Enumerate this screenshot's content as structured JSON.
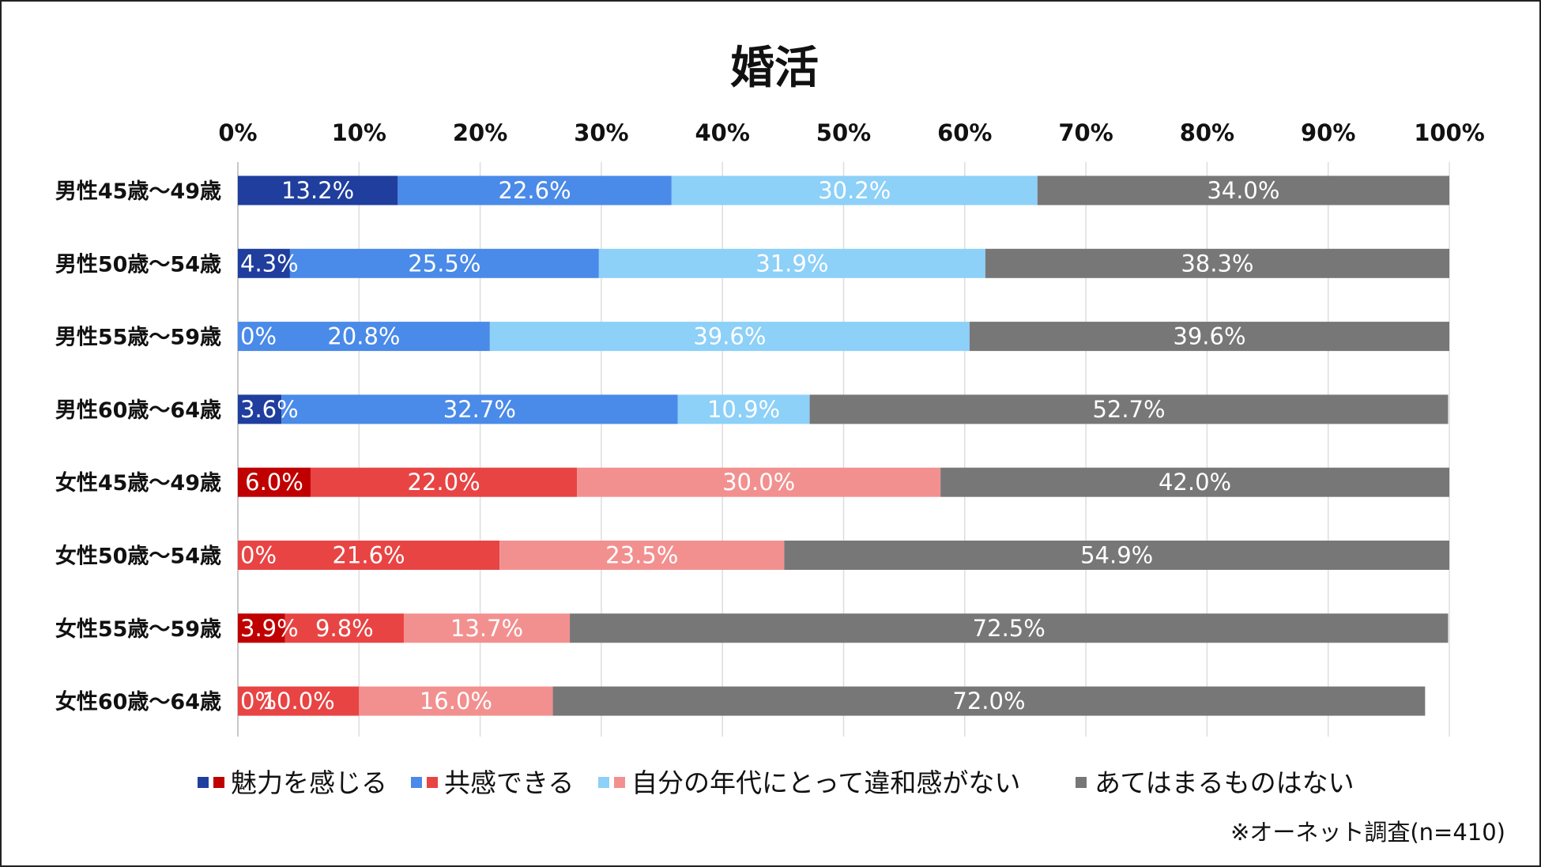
{
  "chart_data": {
    "type": "bar",
    "orientation": "horizontal",
    "stacked": true,
    "title": "婚活",
    "x_ticks": [
      "0%",
      "10%",
      "20%",
      "30%",
      "40%",
      "50%",
      "60%",
      "70%",
      "80%",
      "90%",
      "100%"
    ],
    "xlim": [
      0,
      100
    ],
    "grid": true,
    "legend_position": "bottom",
    "categories": [
      "男性45歳〜49歳",
      "男性50歳〜54歳",
      "男性55歳〜59歳",
      "男性60歳〜64歳",
      "女性45歳〜49歳",
      "女性50歳〜54歳",
      "女性55歳〜59歳",
      "女性60歳〜64歳"
    ],
    "series": [
      {
        "name": "魅力を感じる",
        "values": [
          13.2,
          4.3,
          0,
          3.6,
          6.0,
          0,
          3.9,
          0
        ],
        "labels": [
          "13.2%",
          "4.3%",
          "0%",
          "3.6%",
          "6.0%",
          "0%",
          "3.9%",
          "0%"
        ],
        "color_male": "#1f3e9e",
        "color_female": "#c00000"
      },
      {
        "name": "共感できる",
        "values": [
          22.6,
          25.5,
          20.8,
          32.7,
          22.0,
          21.6,
          9.8,
          10.0
        ],
        "labels": [
          "22.6%",
          "25.5%",
          "20.8%",
          "32.7%",
          "22.0%",
          "21.6%",
          "9.8%",
          "10.0%"
        ],
        "color_male": "#4a8ae8",
        "color_female": "#e84444"
      },
      {
        "name": "自分の年代にとって違和感がない",
        "values": [
          30.2,
          31.9,
          39.6,
          10.9,
          30.0,
          23.5,
          13.7,
          16.0
        ],
        "labels": [
          "30.2%",
          "31.9%",
          "39.6%",
          "10.9%",
          "30.0%",
          "23.5%",
          "13.7%",
          "16.0%"
        ],
        "color_male": "#8dd0f8",
        "color_female": "#f29090"
      },
      {
        "name": "あてはまるものはない",
        "values": [
          34.0,
          38.3,
          39.6,
          52.7,
          42.0,
          54.9,
          72.5,
          72.0
        ],
        "labels": [
          "34.0%",
          "38.3%",
          "39.6%",
          "52.7%",
          "42.0%",
          "54.9%",
          "72.5%",
          "72.0%"
        ],
        "color_male": "#777777",
        "color_female": "#777777"
      }
    ],
    "female_start_index": 4,
    "note": "※オーネット調査(n=410)"
  }
}
